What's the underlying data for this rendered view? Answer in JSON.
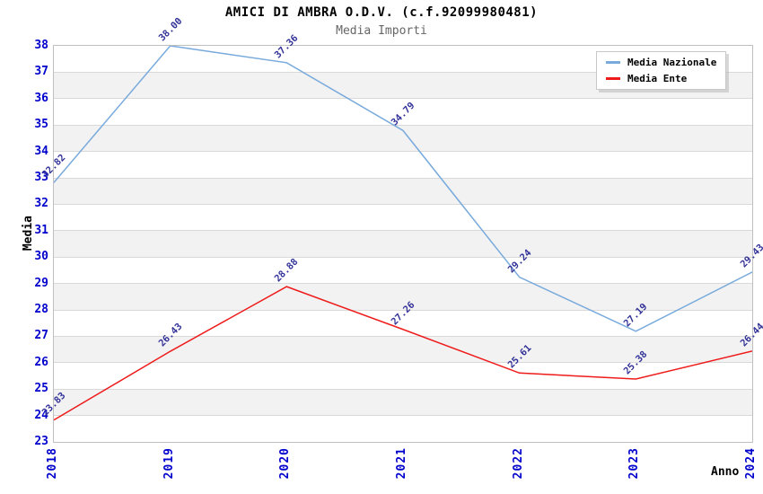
{
  "title": "AMICI DI AMBRA O.D.V. (c.f.92099980481)",
  "subtitle": "Media Importi",
  "colors": {
    "title": "#000000",
    "subtitle": "#666666",
    "tick_label": "#0000cc",
    "point_label": "#333399",
    "band": "#f2f2f2",
    "grid": "#d9d9d9",
    "plot_border": "#bfbfbf"
  },
  "legend": {
    "items": [
      {
        "label": "Media Nazionale",
        "color": "#78aadc"
      },
      {
        "label": "Media Ente",
        "color": "#ee1b1b"
      }
    ],
    "position": "top-right"
  },
  "chart_data": {
    "type": "line",
    "x": [
      "2018",
      "2019",
      "2020",
      "2021",
      "2022",
      "2023",
      "2024"
    ],
    "series": [
      {
        "id": "nazionale",
        "name": "Media Nazionale",
        "color": "#78aadc",
        "values": [
          32.82,
          38.0,
          37.36,
          34.79,
          29.24,
          27.19,
          29.43
        ]
      },
      {
        "id": "ente",
        "name": "Media Ente",
        "color": "#ee1b1b",
        "values": [
          23.83,
          26.43,
          28.88,
          27.26,
          25.61,
          25.38,
          26.44
        ]
      }
    ],
    "title": "AMICI DI AMBRA O.D.V. (c.f.92099980481)",
    "subtitle": "Media Importi",
    "xlabel": "Anno",
    "ylabel": "Media",
    "ylim": [
      23,
      38
    ],
    "ytick_step": 1,
    "grid": "horizontal",
    "background_bands": "alternating-gray",
    "point_labels": "values-rotated-45",
    "value_format": "2-decimals",
    "legend_position": "top-right"
  }
}
